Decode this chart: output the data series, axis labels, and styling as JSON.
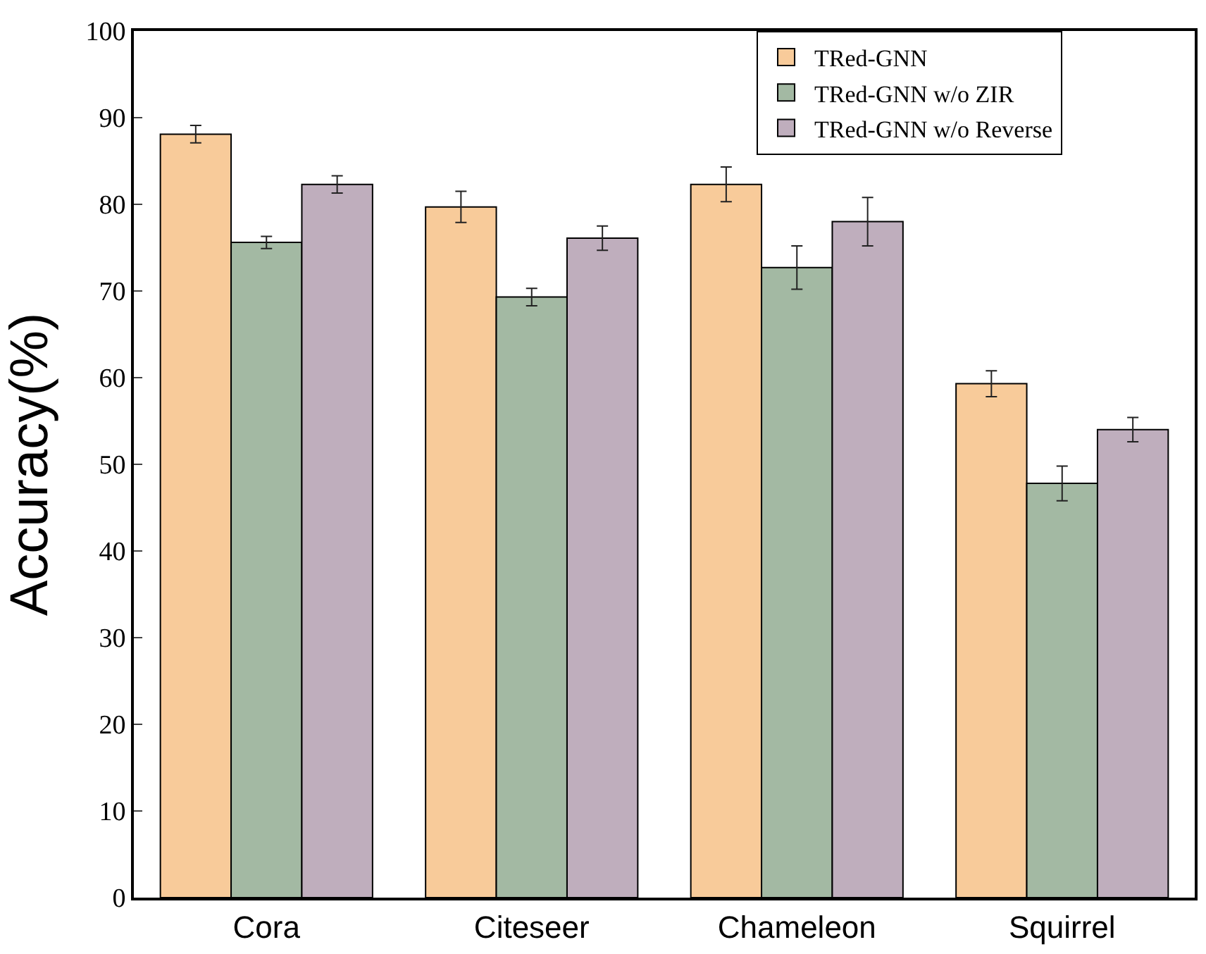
{
  "chart_data": {
    "type": "bar",
    "ylabel": "Accuracy(%)",
    "categories": [
      "Cora",
      "Citeseer",
      "Chameleon",
      "Squirrel"
    ],
    "series": [
      {
        "name": "TRed-GNN",
        "color": "#f8cb9a",
        "values": [
          88.1,
          79.7,
          82.3,
          59.3
        ],
        "errors": [
          1.0,
          1.8,
          2.0,
          1.5
        ]
      },
      {
        "name": "TRed-GNN w/o ZIR",
        "color": "#a3b9a3",
        "values": [
          75.6,
          69.3,
          72.7,
          47.8
        ],
        "errors": [
          0.7,
          1.0,
          2.5,
          2.0
        ]
      },
      {
        "name": "TRed-GNN w/o Reverse",
        "color": "#bfaebd",
        "values": [
          82.3,
          76.1,
          78.0,
          54.0
        ],
        "errors": [
          1.0,
          1.4,
          2.8,
          1.4
        ]
      }
    ],
    "ylim": [
      0,
      100
    ],
    "yticks": [
      0,
      10,
      20,
      30,
      40,
      50,
      60,
      70,
      80,
      90,
      100
    ],
    "legend": "top right"
  }
}
